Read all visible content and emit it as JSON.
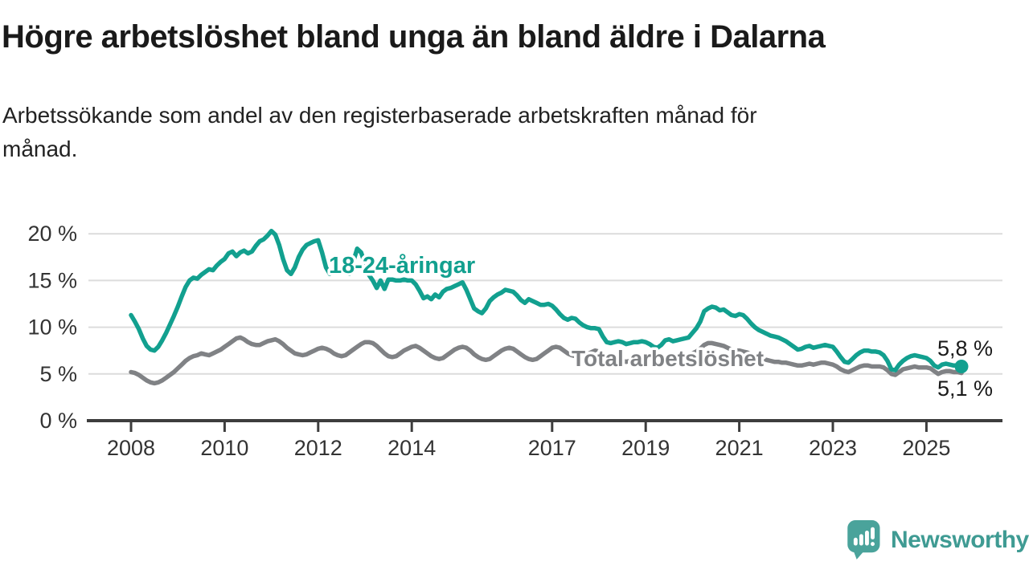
{
  "header": {
    "title": "Högre arbetslöshet bland unga än bland äldre i Dalarna",
    "subtitle_line1": "Arbetssökande som andel av den registerbaserade arbetskraften månad för",
    "subtitle_line2": "månad."
  },
  "chart_data": {
    "type": "line",
    "title": "Högre arbetslöshet bland unga än bland äldre i Dalarna",
    "subtitle": "Arbetssökande som andel av den registerbaserade arbetskraften månad för månad.",
    "unit": "%",
    "x_start": "2008-01",
    "x_end": "2025-10",
    "x_interval": "monthly",
    "ylim": [
      0,
      21
    ],
    "grid": "horizontal",
    "legend_position": "inline-series-labels",
    "y_ticks": [
      {
        "value": 0,
        "label": "0 %"
      },
      {
        "value": 5,
        "label": "5 %"
      },
      {
        "value": 10,
        "label": "10 %"
      },
      {
        "value": 15,
        "label": "15 %"
      },
      {
        "value": 20,
        "label": "20 %"
      }
    ],
    "x_ticks": [
      {
        "year": 2008,
        "label": "2008"
      },
      {
        "year": 2010,
        "label": "2010"
      },
      {
        "year": 2012,
        "label": "2012"
      },
      {
        "year": 2014,
        "label": "2014"
      },
      {
        "year": 2017,
        "label": "2017"
      },
      {
        "year": 2019,
        "label": "2019"
      },
      {
        "year": 2021,
        "label": "2021"
      },
      {
        "year": 2023,
        "label": "2023"
      },
      {
        "year": 2025,
        "label": "2025"
      }
    ],
    "series": [
      {
        "name": "18-24-åringar",
        "label": "18-24-åringar",
        "color": "#12a08f",
        "end_label": "5,8 %",
        "end_value": 5.8,
        "values": [
          11.3,
          10.6,
          9.8,
          8.8,
          8.0,
          7.6,
          7.5,
          7.9,
          8.6,
          9.4,
          10.3,
          11.2,
          12.2,
          13.3,
          14.3,
          15.0,
          15.3,
          15.2,
          15.6,
          15.9,
          16.2,
          16.1,
          16.6,
          17.0,
          17.3,
          17.9,
          18.1,
          17.6,
          18.0,
          18.2,
          17.9,
          18.1,
          18.7,
          19.2,
          19.4,
          19.8,
          20.3,
          19.9,
          18.8,
          17.3,
          16.1,
          15.7,
          16.4,
          17.5,
          18.3,
          18.8,
          19.0,
          19.2,
          19.3,
          18.0,
          16.4,
          15.7,
          15.9,
          16.1,
          16.3,
          15.9,
          15.7,
          17.0,
          18.4,
          18.0,
          16.8,
          15.6,
          15.0,
          14.2,
          15.0,
          14.1,
          15.1,
          15.1,
          15.0,
          15.0,
          15.1,
          15.0,
          15.0,
          14.6,
          13.9,
          13.1,
          13.3,
          13.0,
          13.5,
          13.2,
          13.8,
          14.1,
          14.2,
          14.4,
          14.6,
          14.8,
          14.0,
          13.0,
          12.0,
          11.7,
          11.5,
          12.0,
          12.8,
          13.2,
          13.5,
          13.7,
          14.0,
          13.9,
          13.8,
          13.4,
          12.9,
          12.6,
          13.0,
          12.8,
          12.6,
          12.4,
          12.4,
          12.5,
          12.3,
          11.9,
          11.4,
          11.0,
          10.8,
          11.0,
          10.9,
          10.5,
          10.2,
          10.0,
          9.9,
          9.9,
          9.8,
          9.0,
          8.4,
          8.3,
          8.4,
          8.5,
          8.4,
          8.2,
          8.3,
          8.4,
          8.4,
          8.5,
          8.4,
          8.2,
          7.9,
          7.8,
          8.1,
          8.6,
          8.7,
          8.5,
          8.6,
          8.7,
          8.8,
          8.9,
          9.4,
          9.9,
          10.6,
          11.7,
          12.0,
          12.2,
          12.1,
          11.8,
          11.9,
          11.6,
          11.3,
          11.2,
          11.4,
          11.3,
          10.9,
          10.4,
          10.0,
          9.7,
          9.5,
          9.3,
          9.1,
          9.0,
          8.9,
          8.7,
          8.5,
          8.2,
          7.9,
          7.6,
          7.7,
          7.9,
          8.0,
          7.8,
          7.9,
          8.0,
          8.1,
          8.0,
          7.9,
          7.4,
          6.8,
          6.3,
          6.2,
          6.6,
          7.0,
          7.3,
          7.5,
          7.5,
          7.4,
          7.4,
          7.3,
          7.0,
          6.4,
          5.5,
          5.4,
          6.0,
          6.4,
          6.7,
          6.9,
          7.0,
          6.9,
          6.8,
          6.7,
          6.4,
          5.9,
          5.7,
          6.0,
          6.1,
          6.0,
          5.9,
          5.9,
          5.8
        ]
      },
      {
        "name": "Total arbetslöshet",
        "label": "Total arbetslöshet",
        "color": "#808285",
        "end_label": "5,1 %",
        "end_value": 5.1,
        "values": [
          5.2,
          5.1,
          4.9,
          4.6,
          4.3,
          4.1,
          4.0,
          4.1,
          4.3,
          4.6,
          4.9,
          5.2,
          5.6,
          6.0,
          6.4,
          6.7,
          6.9,
          7.0,
          7.2,
          7.1,
          7.0,
          7.2,
          7.4,
          7.6,
          7.9,
          8.2,
          8.5,
          8.8,
          8.9,
          8.7,
          8.4,
          8.2,
          8.1,
          8.1,
          8.3,
          8.5,
          8.6,
          8.7,
          8.5,
          8.2,
          7.8,
          7.5,
          7.2,
          7.1,
          7.0,
          7.1,
          7.3,
          7.5,
          7.7,
          7.8,
          7.7,
          7.5,
          7.2,
          7.0,
          6.9,
          7.0,
          7.3,
          7.6,
          7.9,
          8.2,
          8.4,
          8.4,
          8.3,
          8.0,
          7.6,
          7.2,
          6.9,
          6.8,
          6.9,
          7.2,
          7.5,
          7.7,
          7.9,
          8.0,
          7.8,
          7.5,
          7.2,
          6.9,
          6.7,
          6.6,
          6.7,
          7.0,
          7.3,
          7.6,
          7.8,
          7.9,
          7.8,
          7.5,
          7.1,
          6.8,
          6.6,
          6.5,
          6.6,
          6.9,
          7.2,
          7.5,
          7.7,
          7.8,
          7.7,
          7.4,
          7.1,
          6.8,
          6.6,
          6.5,
          6.6,
          6.9,
          7.2,
          7.5,
          7.8,
          7.9,
          7.8,
          7.5,
          7.2,
          7.0,
          6.9,
          6.8,
          6.9,
          7.1,
          7.3,
          7.5,
          7.4,
          7.2,
          7.0,
          6.8,
          6.6,
          6.5,
          6.4,
          6.3,
          6.4,
          6.5,
          6.6,
          6.7,
          6.7,
          6.6,
          6.5,
          6.4,
          6.5,
          6.6,
          6.7,
          6.6,
          6.7,
          6.8,
          6.9,
          7.0,
          7.2,
          7.4,
          7.7,
          8.1,
          8.3,
          8.3,
          8.2,
          8.1,
          8.0,
          7.8,
          7.6,
          7.5,
          7.5,
          7.4,
          7.3,
          7.1,
          6.9,
          6.7,
          6.6,
          6.5,
          6.4,
          6.3,
          6.3,
          6.2,
          6.2,
          6.1,
          6.0,
          5.9,
          5.9,
          6.0,
          6.1,
          6.0,
          6.1,
          6.2,
          6.2,
          6.1,
          6.0,
          5.8,
          5.5,
          5.3,
          5.2,
          5.4,
          5.6,
          5.8,
          5.9,
          5.9,
          5.8,
          5.8,
          5.8,
          5.7,
          5.4,
          5.0,
          4.9,
          5.2,
          5.5,
          5.6,
          5.7,
          5.8,
          5.7,
          5.7,
          5.7,
          5.6,
          5.3,
          5.0,
          5.2,
          5.3,
          5.3,
          5.2,
          5.2,
          5.1
        ]
      }
    ]
  },
  "footer": {
    "brand": "Newsworthy"
  }
}
